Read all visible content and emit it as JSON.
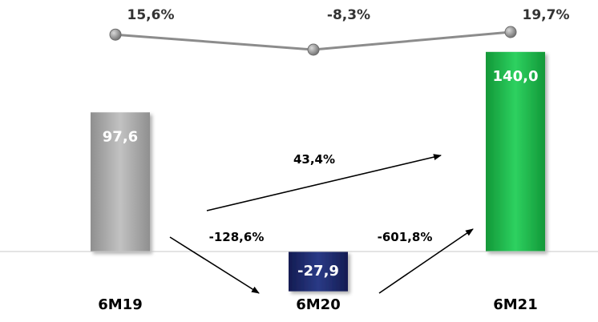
{
  "chart_data": {
    "type": "bar",
    "categories": [
      "6M19",
      "6M20",
      "6M21"
    ],
    "values": [
      97.6,
      -27.9,
      140.0
    ],
    "value_labels": [
      "97,6",
      "-27,9",
      "140,0"
    ],
    "bar_colors": [
      "#a6a6a6",
      "#1f2a6b",
      "#22b04b"
    ],
    "ylim": [
      -40,
      150
    ],
    "grid": false,
    "legend": "none",
    "line_series": {
      "values": [
        15.6,
        -8.3,
        19.7
      ],
      "labels": [
        "15,6%",
        "-8,3%",
        "19,7%"
      ],
      "color": "#8c8c8c"
    },
    "annotations": [
      {
        "from": "6M19",
        "to": "6M20",
        "label": "-128,6%"
      },
      {
        "from": "6M20",
        "to": "6M21",
        "label": "-601,8%"
      },
      {
        "from": "6M19",
        "to": "6M21",
        "label": "43,4%"
      }
    ]
  }
}
